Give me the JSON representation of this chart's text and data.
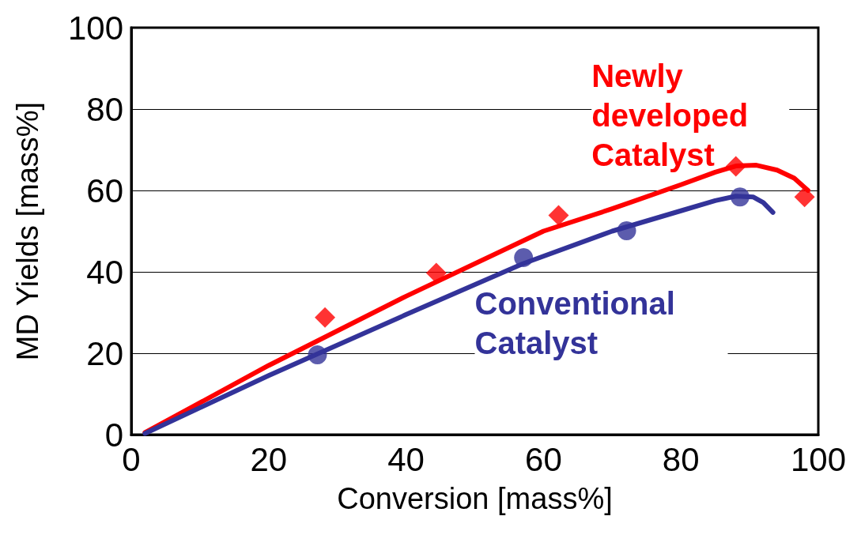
{
  "chart_data": {
    "type": "scatter",
    "xlabel": "Conversion [mass%]",
    "ylabel": "MD Yields [mass%]",
    "xlim": [
      0,
      100
    ],
    "xticks": [
      0,
      20,
      40,
      60,
      80,
      100
    ],
    "ylim": [
      0,
      100
    ],
    "yticks": [
      0,
      20,
      40,
      60,
      80,
      100
    ],
    "grid": "y",
    "legend": false,
    "series": [
      {
        "type": "line",
        "name": "Newly developed Catalyst",
        "color": "#ff0000",
        "marker": "none",
        "x": [
          2,
          20,
          40,
          60,
          70,
          80,
          85,
          88,
          91,
          94,
          96.5,
          98.5
        ],
        "values": [
          0.5,
          17,
          34,
          50,
          55.5,
          61.4,
          64.5,
          66,
          66.2,
          65,
          63,
          60
        ]
      },
      {
        "type": "line",
        "name": "Conventional Catalyst",
        "color": "#333399",
        "marker": "none",
        "x": [
          2,
          20,
          40,
          57,
          70,
          80,
          85,
          88,
          90.5,
          92,
          93.4
        ],
        "values": [
          0.3,
          14.5,
          29.5,
          42,
          50,
          55,
          57.5,
          58.6,
          58.4,
          57,
          54.6
        ]
      },
      {
        "type": "scatter",
        "color": "#ff0000",
        "marker": "diamond",
        "x": [
          28.2,
          44.4,
          62.2,
          88,
          98
        ],
        "values": [
          28.8,
          39.7,
          53.9,
          65.9,
          58.4
        ]
      },
      {
        "type": "scatter",
        "color": "#333399",
        "marker": "circle",
        "x": [
          27.1,
          57.1,
          72.1,
          88.6
        ],
        "values": [
          19.6,
          43.5,
          50.1,
          58.4
        ]
      }
    ]
  }
}
